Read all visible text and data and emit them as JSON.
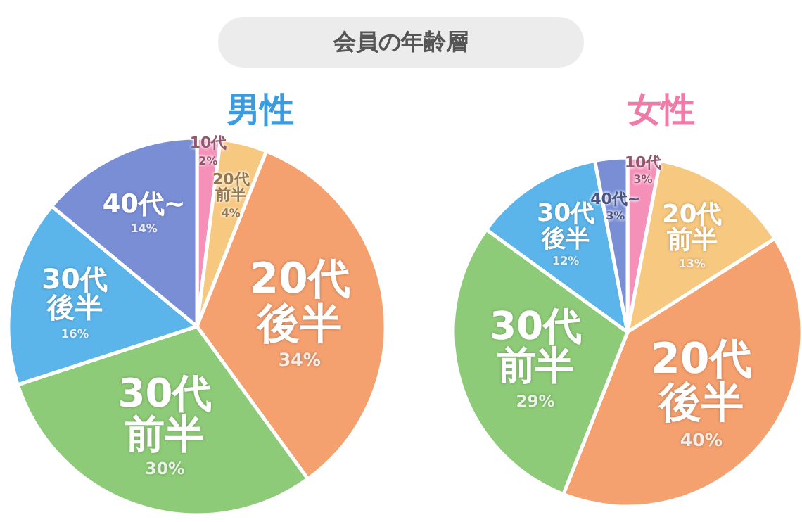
{
  "chart_data": [
    {
      "type": "pie",
      "title": "男性",
      "annotations": [
        "会員の年齢層"
      ],
      "categories": [
        "10代",
        "20代前半",
        "20代後半",
        "30代前半",
        "30代後半",
        "40代~"
      ],
      "values": [
        2,
        4,
        34,
        30,
        16,
        14
      ],
      "value_labels": [
        "2%",
        "4%",
        "34%",
        "30%",
        "16%",
        "14%"
      ],
      "colors": [
        "#f590b9",
        "#f7c87f",
        "#f5a06f",
        "#8ecb78",
        "#5cb5ea",
        "#7a8ed6"
      ]
    },
    {
      "type": "pie",
      "title": "女性",
      "categories": [
        "10代",
        "20代前半",
        "20代後半",
        "30代前半",
        "30代後半",
        "40代~"
      ],
      "values": [
        3,
        13,
        40,
        29,
        12,
        3
      ],
      "value_labels": [
        "3%",
        "13%",
        "40%",
        "29%",
        "12%",
        "3%"
      ],
      "colors": [
        "#f590b9",
        "#f7c87f",
        "#f5a06f",
        "#8ecb78",
        "#5cb5ea",
        "#7a8ed6"
      ]
    }
  ]
}
